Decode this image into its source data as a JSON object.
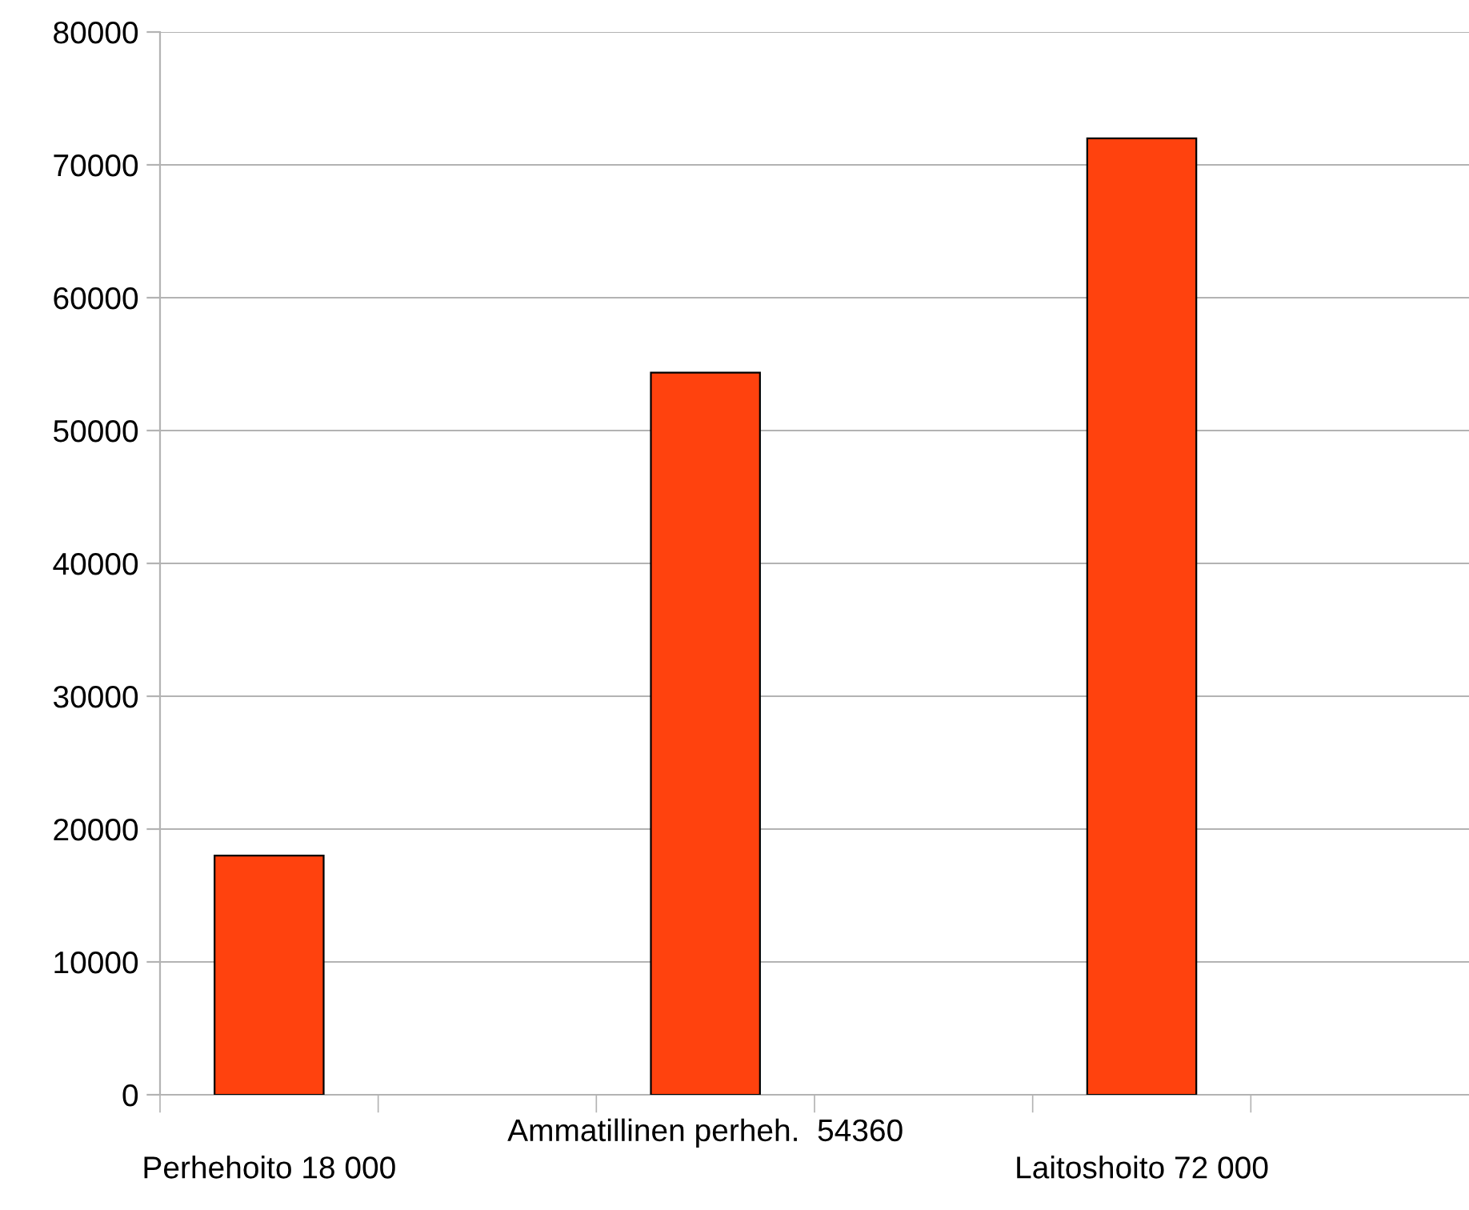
{
  "chart_data": {
    "type": "bar",
    "categories": [
      "Perhehoito 18 000",
      "Ammatillinen perheh.  54360",
      "Laitoshoito 72 000"
    ],
    "values": [
      18000,
      54360,
      72000
    ],
    "color": "#ff420e",
    "ylim": [
      0,
      80000
    ],
    "yticks": [
      0,
      10000,
      20000,
      30000,
      40000,
      50000,
      60000,
      70000,
      80000
    ],
    "grid": "y"
  }
}
